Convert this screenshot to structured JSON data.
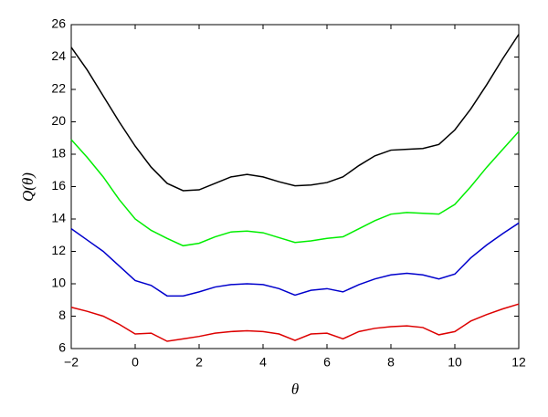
{
  "chart_data": {
    "type": "line",
    "xlabel": "θ",
    "ylabel": "Q(θ)",
    "x": [
      -2,
      -1.5,
      -1,
      -0.5,
      0,
      0.5,
      1,
      1.5,
      2,
      2.5,
      3,
      3.5,
      4,
      4.5,
      5,
      5.5,
      6,
      6.5,
      7,
      7.5,
      8,
      8.5,
      9,
      9.5,
      10,
      10.5,
      11,
      11.5,
      12
    ],
    "series": [
      {
        "color": "#000000",
        "values": [
          24.6,
          23.2,
          21.6,
          20.0,
          18.5,
          17.2,
          16.2,
          15.75,
          15.8,
          16.2,
          16.6,
          16.75,
          16.6,
          16.3,
          16.05,
          16.1,
          16.25,
          16.6,
          17.3,
          17.9,
          18.25,
          18.3,
          18.35,
          18.6,
          19.5,
          20.8,
          22.3,
          23.9,
          25.4
        ]
      },
      {
        "color": "#00ee00",
        "values": [
          18.9,
          17.8,
          16.6,
          15.2,
          14.0,
          13.3,
          12.8,
          12.35,
          12.5,
          12.9,
          13.2,
          13.25,
          13.15,
          12.85,
          12.55,
          12.65,
          12.8,
          12.9,
          13.4,
          13.9,
          14.3,
          14.4,
          14.35,
          14.3,
          14.9,
          16.0,
          17.2,
          18.3,
          19.4
        ]
      },
      {
        "color": "#0000cc",
        "values": [
          13.4,
          12.7,
          12.0,
          11.1,
          10.2,
          9.9,
          9.25,
          9.25,
          9.5,
          9.8,
          9.95,
          10.0,
          9.95,
          9.7,
          9.3,
          9.6,
          9.7,
          9.5,
          9.95,
          10.3,
          10.55,
          10.65,
          10.55,
          10.3,
          10.6,
          11.6,
          12.4,
          13.1,
          13.75
        ]
      },
      {
        "color": "#dd0000",
        "values": [
          8.55,
          8.3,
          8.0,
          7.5,
          6.9,
          6.95,
          6.45,
          6.6,
          6.75,
          6.95,
          7.05,
          7.1,
          7.05,
          6.9,
          6.5,
          6.9,
          6.95,
          6.6,
          7.05,
          7.25,
          7.35,
          7.4,
          7.3,
          6.85,
          7.05,
          7.7,
          8.1,
          8.45,
          8.75
        ]
      }
    ],
    "xlim": [
      -2,
      12
    ],
    "xticks": [
      {
        "value": -2,
        "label": "−2"
      },
      0,
      2,
      4,
      6,
      8,
      10,
      12
    ],
    "ylim": [
      6,
      26
    ],
    "yticks": [
      6,
      8,
      10,
      12,
      14,
      16,
      18,
      20,
      22,
      24,
      26
    ]
  }
}
